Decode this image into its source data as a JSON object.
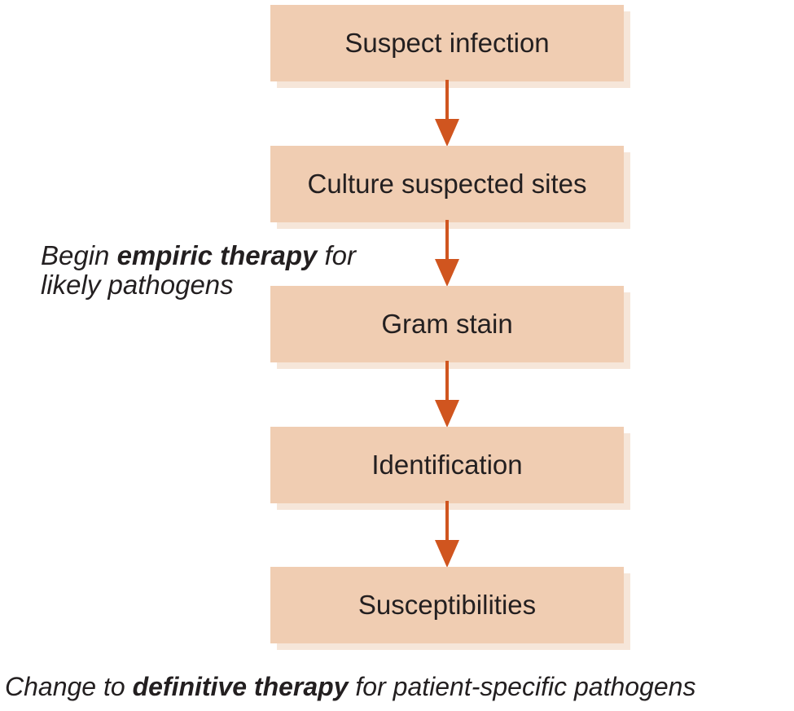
{
  "steps": [
    {
      "label": "Suspect infection"
    },
    {
      "label": "Culture suspected sites"
    },
    {
      "label": "Gram stain"
    },
    {
      "label": "Identification"
    },
    {
      "label": "Susceptibilities"
    }
  ],
  "empiric_note": {
    "prefix": "Begin ",
    "emphasis": "empiric therapy",
    "suffix": " for",
    "line2": "likely pathogens"
  },
  "definitive_note": {
    "prefix": "Change to ",
    "emphasis": "definitive therapy",
    "suffix": " for patient-specific pathogens"
  },
  "colors": {
    "box_fill": "#f0cdb2",
    "box_shadow": "#f6e6d9",
    "arrow": "#d0551f",
    "text": "#231f20"
  },
  "icons": {
    "connector": "arrow-down-icon"
  }
}
